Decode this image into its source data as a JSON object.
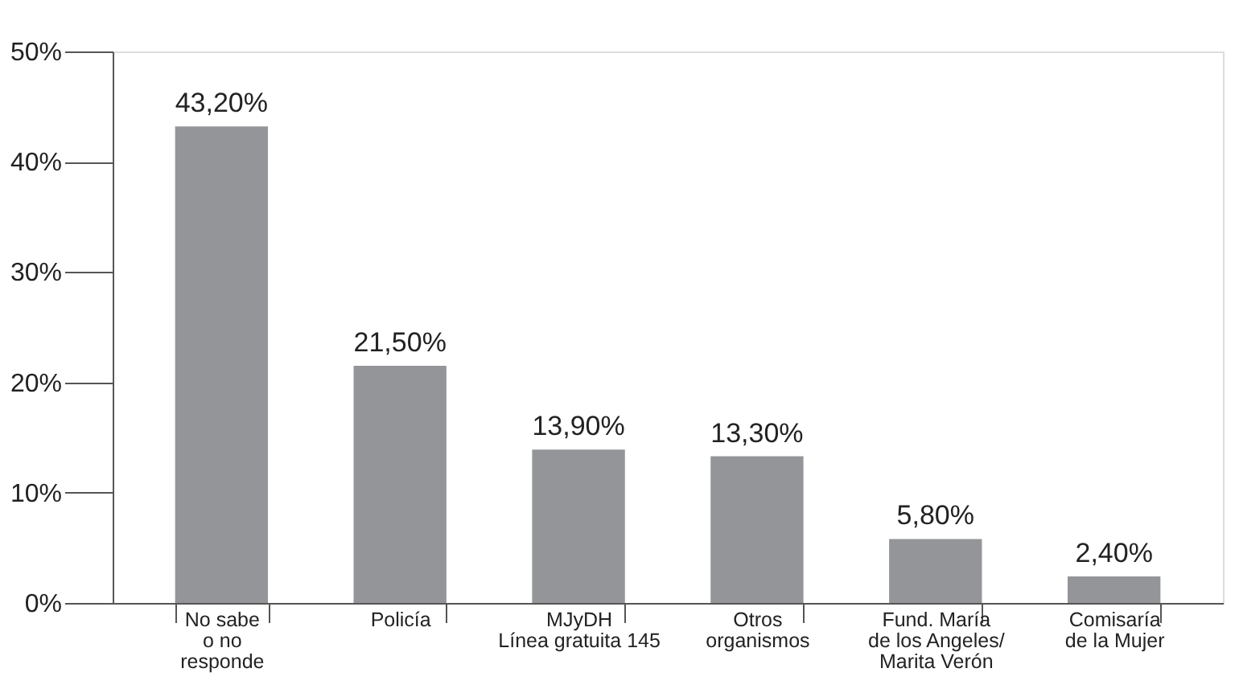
{
  "chart_data": {
    "type": "bar",
    "categories": [
      "No sabe\no no\nresponde",
      "Policía",
      "MJyDH\nLínea gratuita 145",
      "Otros\norganismos",
      "Fund. María\nde los Angeles/\nMarita Verón",
      "Comisaría\nde la Mujer"
    ],
    "values": [
      43.2,
      21.5,
      13.9,
      13.3,
      5.8,
      2.4
    ],
    "value_labels": [
      "43,20%",
      "21,50%",
      "13,90%",
      "13,30%",
      "5,80%",
      "2,40%"
    ],
    "color": "#939598",
    "ylim": [
      0,
      50
    ],
    "yticks": [
      {
        "value": 0,
        "label": "0%"
      },
      {
        "value": 10,
        "label": "10%"
      },
      {
        "value": 20,
        "label": "20%"
      },
      {
        "value": 30,
        "label": "30%"
      },
      {
        "value": 40,
        "label": "40%"
      },
      {
        "value": 50,
        "label": "50%"
      }
    ],
    "grid": false
  }
}
